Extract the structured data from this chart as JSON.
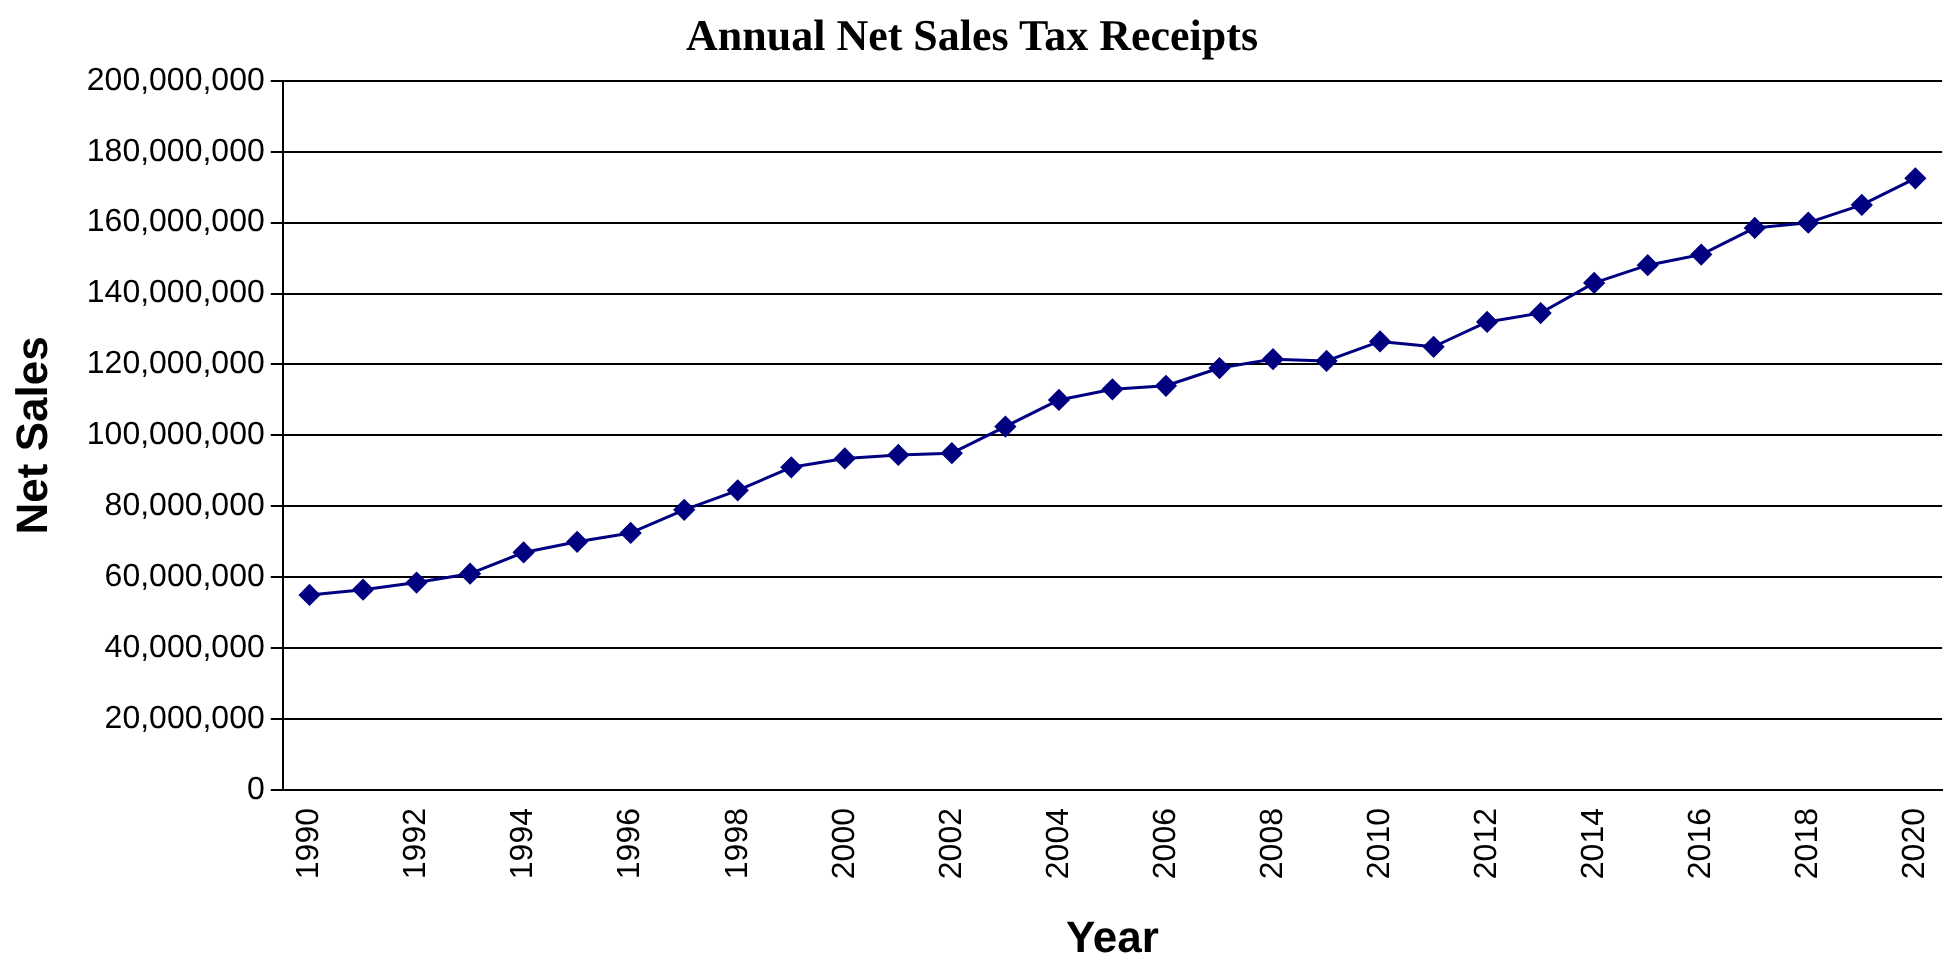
{
  "chart_data": {
    "type": "line",
    "title": "Annual Net Sales Tax Receipts",
    "xlabel": "Year",
    "ylabel": "Net Sales",
    "categories": [
      "1990",
      null,
      "1992",
      null,
      "1994",
      null,
      "1996",
      null,
      "1998",
      null,
      "2000",
      null,
      "2002",
      null,
      "2004",
      null,
      "2006",
      null,
      "2008",
      null,
      "2010",
      null,
      "2012",
      null,
      "2014",
      null,
      "2016",
      null,
      "2018",
      null,
      "2020"
    ],
    "series": [
      {
        "color": "#000080",
        "values": [
          55000000,
          56500000,
          58500000,
          61000000,
          67000000,
          70000000,
          72500000,
          79000000,
          84500000,
          91000000,
          93500000,
          94500000,
          95000000,
          102500000,
          110000000,
          113000000,
          114000000,
          119000000,
          121500000,
          121000000,
          126500000,
          125000000,
          132000000,
          134500000,
          143000000,
          148000000,
          151000000,
          158500000,
          160000000,
          165000000,
          172500000
        ]
      }
    ],
    "ylim": [
      0,
      200000000
    ],
    "yticks": [
      0,
      {
        "value": 20000000,
        "label": "20,000,000"
      },
      {
        "value": 40000000,
        "label": "40,000,000"
      },
      {
        "value": 60000000,
        "label": "60,000,000"
      },
      {
        "value": 80000000,
        "label": "80,000,000"
      },
      {
        "value": 100000000,
        "label": "100,000,000"
      },
      {
        "value": 120000000,
        "label": "120,000,000"
      },
      {
        "value": 140000000,
        "label": "140,000,000"
      },
      {
        "value": 160000000,
        "label": "160,000,000"
      },
      {
        "value": 180000000,
        "label": "180,000,000"
      },
      {
        "value": 200000000,
        "label": "200,000,000"
      }
    ],
    "grid": "y",
    "legend": false,
    "marker": "diamond",
    "line_style": "solid"
  }
}
